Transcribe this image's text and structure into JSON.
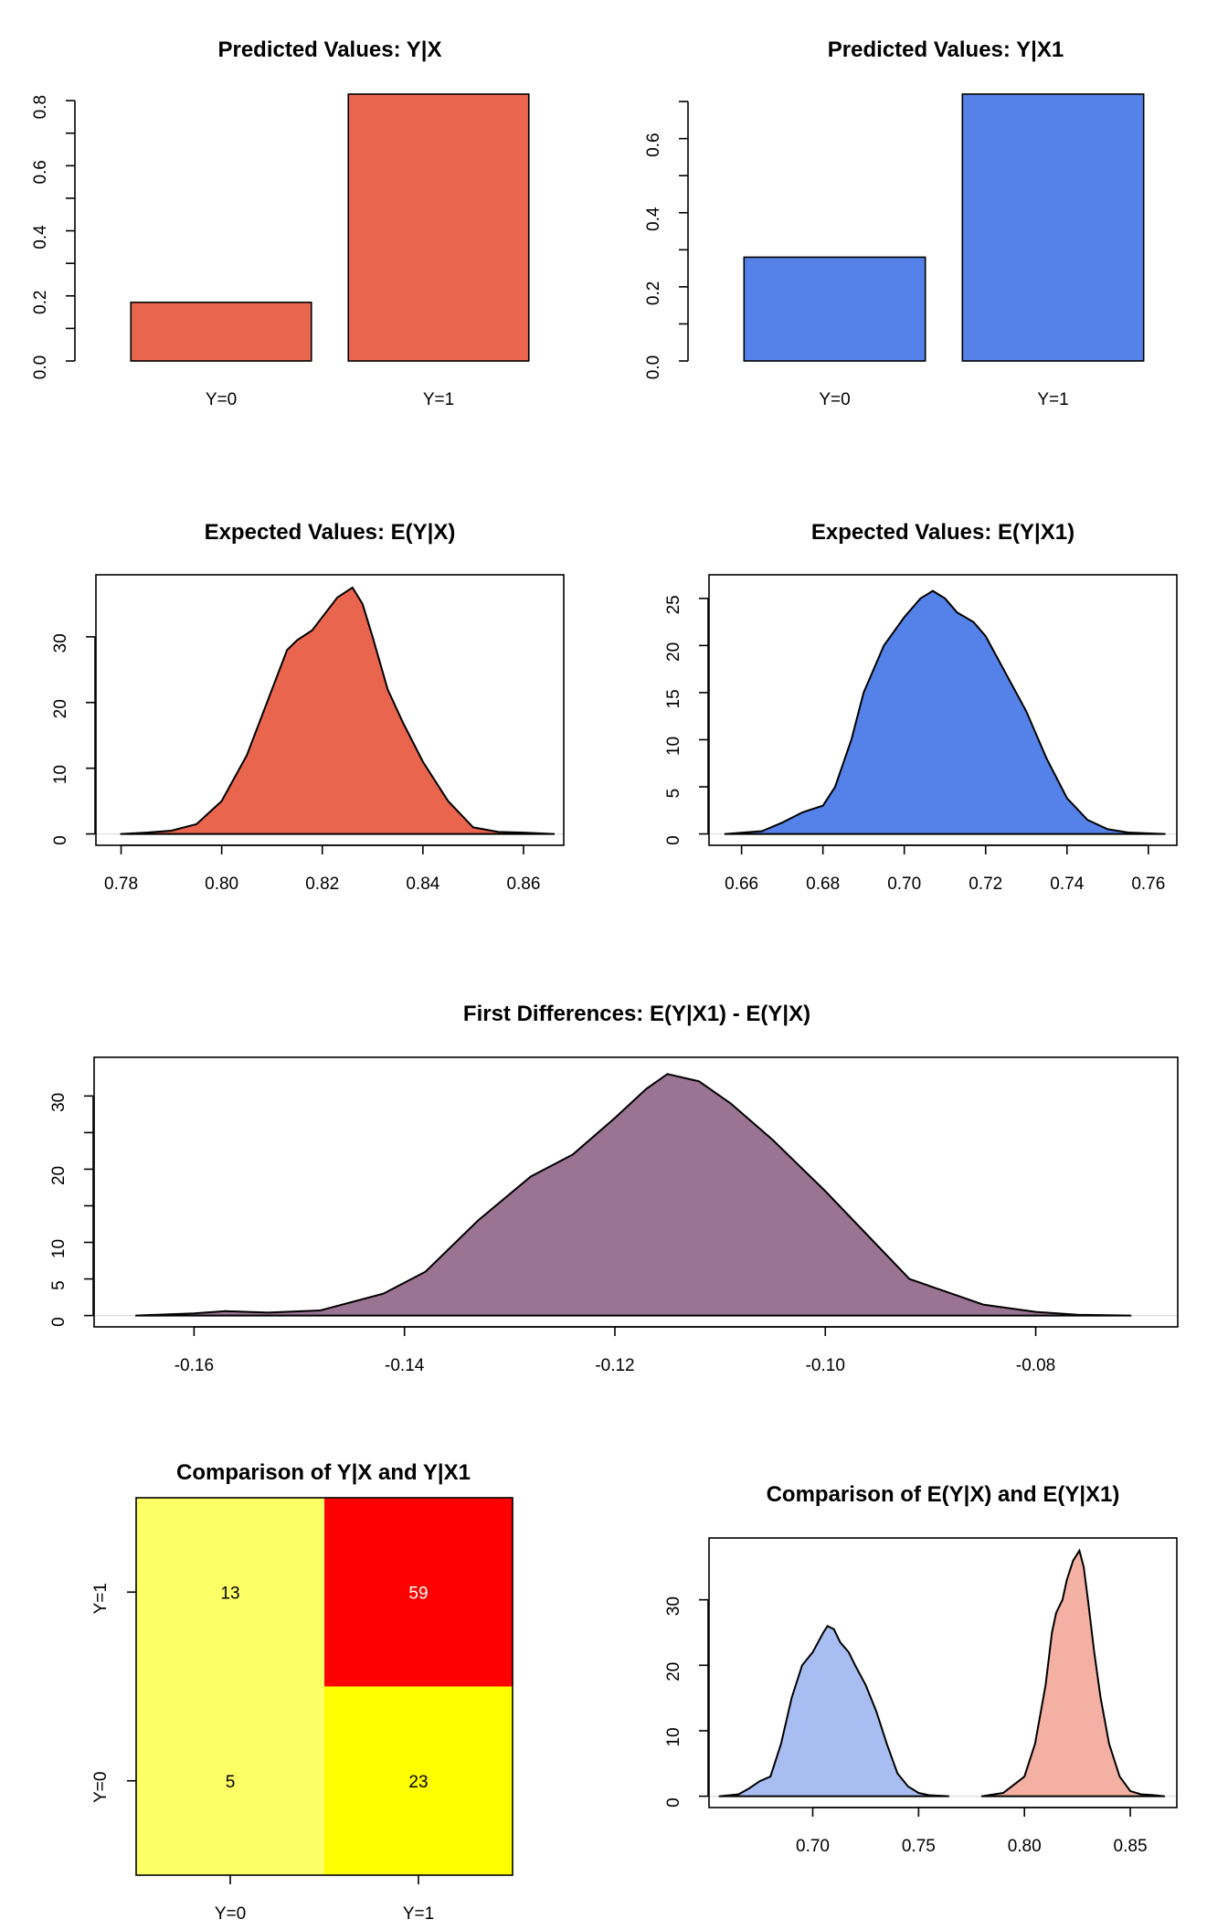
{
  "colors": {
    "red": "#ea654d",
    "blue": "#5482e8",
    "purple": "#9b7494",
    "light_yellow": "#ffff66",
    "yellow": "#ffff00",
    "bright_red": "#ff0000",
    "light_blue": "#a8bef2",
    "light_red": "#f4b0a2"
  },
  "chart_data": [
    {
      "type": "bar",
      "title": "Predicted Values: Y|X",
      "categories": [
        "Y=0",
        "Y=1"
      ],
      "values": [
        0.18,
        0.82
      ],
      "ylim": [
        0,
        0.8
      ],
      "yticks": [
        "0.0",
        "0.2",
        "0.4",
        "0.6",
        "0.8"
      ],
      "color": "red"
    },
    {
      "type": "bar",
      "title": "Predicted Values: Y|X1",
      "categories": [
        "Y=0",
        "Y=1"
      ],
      "values": [
        0.28,
        0.72
      ],
      "ylim": [
        0,
        0.7
      ],
      "yticks": [
        "0.0",
        "0.2",
        "0.4",
        "0.6"
      ],
      "color": "blue"
    },
    {
      "type": "area",
      "title": "Expected Values: E(Y|X)",
      "x": [
        0.78,
        0.785,
        0.79,
        0.795,
        0.8,
        0.805,
        0.81,
        0.813,
        0.815,
        0.818,
        0.82,
        0.823,
        0.826,
        0.828,
        0.83,
        0.833,
        0.836,
        0.84,
        0.845,
        0.85,
        0.855,
        0.86,
        0.866
      ],
      "y": [
        0,
        0.2,
        0.5,
        1.5,
        5,
        12,
        22,
        28,
        29.5,
        31,
        33,
        36,
        37.5,
        35,
        30,
        22,
        17,
        11,
        5,
        1,
        0.3,
        0.2,
        0
      ],
      "xticks": [
        "0.78",
        "0.80",
        "0.82",
        "0.84",
        "0.86"
      ],
      "yticks": [
        "0",
        "10",
        "20",
        "30"
      ],
      "xlim": [
        0.775,
        0.868
      ],
      "ylim": [
        0,
        38
      ],
      "color": "red"
    },
    {
      "type": "area",
      "title": "Expected Values: E(Y|X1)",
      "x": [
        0.656,
        0.665,
        0.67,
        0.675,
        0.68,
        0.683,
        0.687,
        0.69,
        0.695,
        0.7,
        0.704,
        0.707,
        0.71,
        0.713,
        0.717,
        0.72,
        0.725,
        0.73,
        0.735,
        0.74,
        0.745,
        0.75,
        0.755,
        0.764
      ],
      "y": [
        0,
        0.3,
        1.2,
        2.3,
        3,
        5,
        10,
        15,
        20,
        23,
        25,
        25.8,
        25,
        23.5,
        22.5,
        21,
        17,
        13,
        8,
        3.8,
        1.5,
        0.5,
        0.15,
        0
      ],
      "xticks": [
        "0.66",
        "0.68",
        "0.70",
        "0.72",
        "0.74",
        "0.76"
      ],
      "yticks": [
        "0",
        "5",
        "10",
        "15",
        "20",
        "25"
      ],
      "xlim": [
        0.652,
        0.767
      ],
      "ylim": [
        0,
        26.5
      ],
      "color": "blue"
    },
    {
      "type": "area",
      "title": "First Differences: E(Y|X1) - E(Y|X)",
      "x": [
        -0.1655,
        -0.16,
        -0.157,
        -0.153,
        -0.148,
        -0.142,
        -0.138,
        -0.133,
        -0.128,
        -0.124,
        -0.12,
        -0.117,
        -0.115,
        -0.112,
        -0.109,
        -0.105,
        -0.1,
        -0.096,
        -0.092,
        -0.088,
        -0.085,
        -0.08,
        -0.076,
        -0.071
      ],
      "y": [
        0,
        0.3,
        0.6,
        0.4,
        0.7,
        3,
        6,
        13,
        19,
        22,
        27,
        31,
        33,
        32,
        29,
        24,
        17,
        11,
        5,
        3,
        1.5,
        0.5,
        0.1,
        0
      ],
      "xticks": [
        "-0.16",
        "-0.14",
        "-0.12",
        "-0.10",
        "-0.08"
      ],
      "yticks": [
        "0",
        "5",
        "10",
        "20",
        "30"
      ],
      "xlim": [
        -0.1695,
        -0.0665
      ],
      "ylim": [
        0,
        34
      ],
      "color": "purple"
    },
    {
      "type": "heatmap",
      "title": "Comparison of Y|X and Y|X1",
      "x_categories": [
        "Y=0",
        "Y=1"
      ],
      "y_categories": [
        "Y=0",
        "Y=1"
      ],
      "cells": [
        {
          "x": "Y=0",
          "y": "Y=1",
          "value": 13,
          "color": "light_yellow"
        },
        {
          "x": "Y=1",
          "y": "Y=1",
          "value": 59,
          "color": "bright_red"
        },
        {
          "x": "Y=0",
          "y": "Y=0",
          "value": 5,
          "color": "light_yellow"
        },
        {
          "x": "Y=1",
          "y": "Y=0",
          "value": 23,
          "color": "yellow"
        }
      ]
    },
    {
      "type": "area",
      "title": "Comparison of E(Y|X) and E(Y|X1)",
      "xticks": [
        "0.70",
        "0.75",
        "0.80",
        "0.85"
      ],
      "yticks": [
        "0",
        "10",
        "20",
        "30"
      ],
      "xlim": [
        0.651,
        0.872
      ],
      "ylim": [
        0,
        38
      ],
      "series": [
        {
          "x": [
            0.656,
            0.665,
            0.67,
            0.675,
            0.68,
            0.685,
            0.69,
            0.695,
            0.7,
            0.705,
            0.707,
            0.71,
            0.713,
            0.717,
            0.72,
            0.725,
            0.73,
            0.735,
            0.74,
            0.745,
            0.75,
            0.755,
            0.764
          ],
          "y": [
            0,
            0.3,
            1.2,
            2.3,
            3,
            8,
            15,
            20,
            22,
            25,
            26,
            25.5,
            23.5,
            22,
            20,
            17,
            13,
            8,
            3.5,
            1.5,
            0.5,
            0.15,
            0
          ],
          "color": "light_blue"
        },
        {
          "x": [
            0.78,
            0.79,
            0.8,
            0.805,
            0.81,
            0.813,
            0.815,
            0.818,
            0.82,
            0.823,
            0.826,
            0.828,
            0.83,
            0.833,
            0.836,
            0.84,
            0.845,
            0.85,
            0.855,
            0.86,
            0.866
          ],
          "y": [
            0,
            0.5,
            3,
            8,
            17,
            25,
            28,
            30,
            33,
            36,
            37.5,
            35,
            30,
            22,
            15,
            8,
            3,
            0.8,
            0.3,
            0.2,
            0
          ],
          "color": "light_red"
        }
      ]
    }
  ]
}
